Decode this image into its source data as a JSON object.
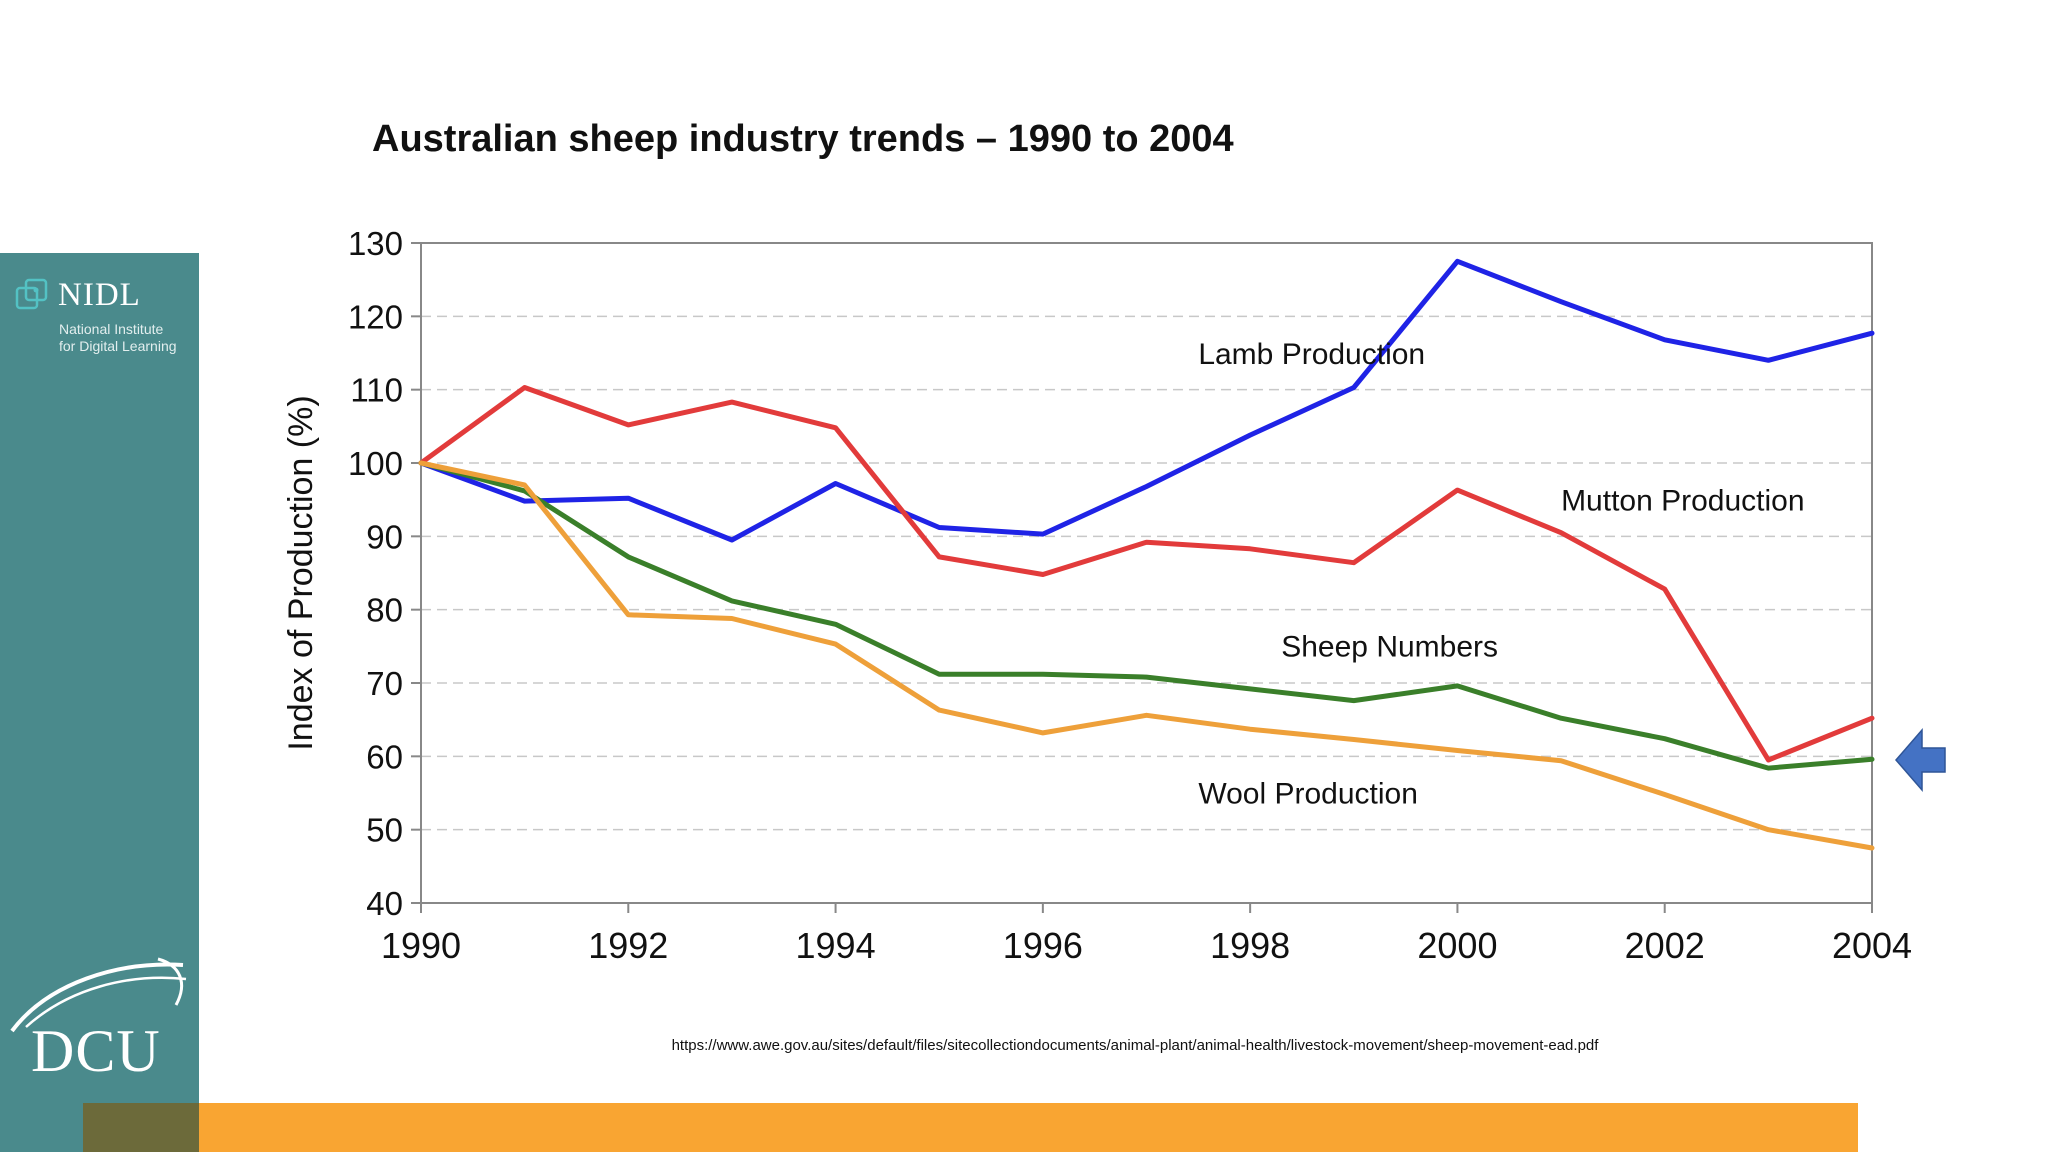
{
  "sidebar": {
    "logo_name": "NIDL",
    "logo_subtitle_line1": "National Institute",
    "logo_subtitle_line2": "for Digital Learning",
    "university_logo": "DCU"
  },
  "source_url": "https://www.awe.gov.au/sites/default/files/sitecollectiondocuments/animal-plant/animal-health/livestock-movement/sheep-movement-ead.pdf",
  "pointer_icon": "left-arrow-icon",
  "colors": {
    "sidebar": "#4a8a8c",
    "bar": "#f9a532",
    "arrow": "#4472c4"
  },
  "chart_data": {
    "type": "line",
    "title": "Australian sheep industry trends – 1990 to 2004",
    "xlabel": "",
    "ylabel": "Index of Production (%)",
    "xlim": [
      1990,
      2004
    ],
    "ylim": [
      40,
      130
    ],
    "xticks": [
      1990,
      1992,
      1994,
      1996,
      1998,
      2000,
      2002,
      2004
    ],
    "yticks": [
      40,
      50,
      60,
      70,
      80,
      90,
      100,
      110,
      120,
      130
    ],
    "grid": "horizontal dashed",
    "x": [
      1990,
      1991,
      1992,
      1993,
      1994,
      1995,
      1996,
      1997,
      1998,
      1999,
      2000,
      2001,
      2002,
      2003,
      2004
    ],
    "series": [
      {
        "name": "Lamb Production",
        "color": "#1f23e6",
        "values": [
          100,
          94.8,
          95.2,
          89.5,
          97.2,
          91.2,
          90.3,
          96.8,
          103.8,
          110.3,
          127.5,
          122,
          116.8,
          114,
          117.7
        ],
        "label_x": 1997.5,
        "label_y": 113.5
      },
      {
        "name": "Mutton Production",
        "color": "#e23b3b",
        "values": [
          100,
          110.3,
          105.2,
          108.3,
          104.8,
          87.2,
          84.8,
          89.2,
          88.3,
          86.4,
          96.3,
          90.5,
          82.8,
          59.5,
          65.2
        ],
        "label_x": 2001,
        "label_y": 93.5
      },
      {
        "name": "Sheep Numbers",
        "color": "#3a7f2a",
        "values": [
          100,
          96.2,
          87.2,
          81.2,
          78,
          71.2,
          71.2,
          70.8,
          69.2,
          67.6,
          69.6,
          65.2,
          62.4,
          58.4,
          59.6
        ],
        "label_x": 1998.3,
        "label_y": 73.6
      },
      {
        "name": "Wool Production",
        "color": "#eea03a",
        "values": [
          100,
          97,
          79.3,
          78.8,
          75.3,
          66.3,
          63.2,
          65.6,
          63.7,
          62.3,
          60.8,
          59.4,
          54.8,
          50,
          47.5
        ],
        "label_x": 1997.5,
        "label_y": 53.6
      }
    ]
  }
}
